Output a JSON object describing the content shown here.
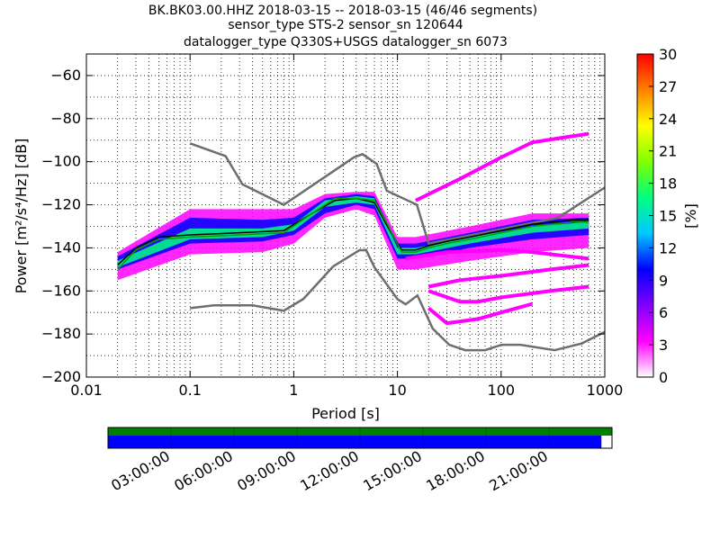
{
  "title": {
    "line1": "BK.BK03.00.HHZ   2018-03-15 -- 2018-03-15  (46/46 segments)",
    "line2": "sensor_type STS-2 sensor_sn 120644",
    "line3": "datalogger_type Q330S+USGS datalogger_sn 6073"
  },
  "chart_data": {
    "type": "heatmap",
    "xlabel": "Period [s]",
    "ylabel": "Power [m²/s⁴/Hz] [dB]",
    "x_scale": "log",
    "xlim": [
      0.01,
      1000
    ],
    "ylim": [
      -200,
      -50
    ],
    "x_ticks": [
      {
        "value": 0.01,
        "label": "0.01"
      },
      {
        "value": 0.1,
        "label": "0.1"
      },
      {
        "value": 1,
        "label": "1"
      },
      {
        "value": 10,
        "label": "10"
      },
      {
        "value": 100,
        "label": "100"
      },
      {
        "value": 1000,
        "label": "1000"
      }
    ],
    "y_ticks": [
      {
        "value": -60,
        "label": "−60"
      },
      {
        "value": -80,
        "label": "−80"
      },
      {
        "value": -100,
        "label": "−100"
      },
      {
        "value": -120,
        "label": "−120"
      },
      {
        "value": -140,
        "label": "−140"
      },
      {
        "value": -160,
        "label": "−160"
      },
      {
        "value": -180,
        "label": "−180"
      },
      {
        "value": -200,
        "label": "−200"
      }
    ],
    "grid": "dotted",
    "colorbar": {
      "label": "[%]",
      "range": [
        0,
        30
      ],
      "ticks": [
        "0",
        "3",
        "6",
        "9",
        "12",
        "15",
        "18",
        "21",
        "24",
        "27",
        "30"
      ],
      "colors": [
        "#ffffff",
        "#ff00ff",
        "#8000ff",
        "#0000ff",
        "#00c8ff",
        "#00ff80",
        "#80ff00",
        "#ffff00",
        "#ff8000",
        "#ff0000"
      ]
    },
    "series": [
      {
        "role": "high-noise-model",
        "color": "#6e6e6e",
        "x": [
          0.1,
          0.22,
          0.32,
          0.8,
          3.8,
          4.6,
          6.3,
          7.9,
          15.4,
          20,
          354.8,
          1000
        ],
        "y": [
          -91.5,
          -97.4,
          -110.5,
          -120,
          -98,
          -96.5,
          -101,
          -113.5,
          -120,
          -138,
          -126,
          -112
        ]
      },
      {
        "role": "low-noise-model",
        "color": "#6e6e6e",
        "x": [
          0.1,
          0.17,
          0.4,
          0.8,
          1.24,
          2.4,
          4.3,
          5,
          6,
          10,
          12,
          15.6,
          21.9,
          31.6,
          45,
          70,
          101,
          154,
          328,
          600,
          1000
        ],
        "y": [
          -168,
          -166.7,
          -166.7,
          -169.2,
          -163.7,
          -148.6,
          -141.1,
          -141.1,
          -149,
          -163.8,
          -166.2,
          -162.1,
          -177.5,
          -185,
          -187.5,
          -187.5,
          -185,
          -185,
          -187.5,
          -184.4,
          -179
        ]
      },
      {
        "role": "mean",
        "color": "#000000",
        "x": [
          0.02,
          0.03,
          0.05,
          0.1,
          0.3,
          0.8,
          1.5,
          2.5,
          4,
          6,
          8,
          11,
          15,
          20,
          30,
          50,
          100,
          200,
          500,
          700
        ],
        "y": [
          -148,
          -140,
          -135,
          -134,
          -133,
          -132,
          -124,
          -118,
          -117,
          -119,
          -130,
          -141,
          -141,
          -139,
          -137,
          -135,
          -132,
          -129,
          -127,
          -127
        ]
      },
      {
        "role": "mode",
        "color": "#00a000",
        "x": [
          0.02,
          0.03,
          0.05,
          0.1,
          0.3,
          0.8,
          1.5,
          2.5,
          4,
          6,
          8,
          11,
          15,
          20,
          30,
          50,
          100,
          200,
          500,
          700
        ],
        "y": [
          -150,
          -141,
          -136,
          -135,
          -134,
          -133,
          -124,
          -117,
          -117,
          -118,
          -129,
          -142,
          -142,
          -140,
          -138,
          -136,
          -133,
          -130,
          -128,
          -128
        ]
      }
    ],
    "density_bands": [
      {
        "x": [
          0.02,
          0.1,
          0.5,
          1,
          2,
          4,
          6,
          10,
          15,
          50,
          200,
          700
        ],
        "low": [
          -155,
          -143,
          -142,
          -138,
          -126,
          -122,
          -125,
          -150,
          -150,
          -146,
          -142,
          -140
        ],
        "high": [
          -142,
          -122,
          -122,
          -122,
          -115,
          -114,
          -114,
          -135,
          -135,
          -130,
          -124,
          -124
        ],
        "level": 3
      },
      {
        "x": [
          0.02,
          0.1,
          0.5,
          1,
          2,
          4,
          6,
          10,
          15,
          50,
          200,
          700
        ],
        "low": [
          -150,
          -138,
          -137,
          -134,
          -124,
          -120,
          -122,
          -145,
          -145,
          -140,
          -136,
          -134
        ],
        "high": [
          -144,
          -126,
          -127,
          -126,
          -117,
          -115,
          -116,
          -138,
          -138,
          -133,
          -127,
          -126
        ],
        "level": 10
      },
      {
        "x": [
          0.02,
          0.1,
          0.5,
          1,
          2,
          4,
          6,
          10,
          15,
          50,
          200,
          700
        ],
        "low": [
          -149,
          -136,
          -135,
          -132,
          -121,
          -119,
          -120,
          -143,
          -143,
          -138,
          -133,
          -131
        ],
        "high": [
          -146,
          -131,
          -131,
          -129,
          -118,
          -116,
          -117,
          -140,
          -140,
          -135,
          -130,
          -128
        ],
        "level": 18
      }
    ],
    "outlier_segments": [
      {
        "x": [
          15,
          40,
          100,
          200,
          700
        ],
        "y": [
          -118,
          -108,
          -98,
          -91,
          -87
        ]
      },
      {
        "x": [
          12,
          30,
          100,
          200,
          700
        ],
        "y": [
          -145,
          -142,
          -141,
          -142,
          -145
        ]
      },
      {
        "x": [
          20,
          40,
          100,
          300,
          700
        ],
        "y": [
          -158,
          -155,
          -153,
          -150,
          -148
        ]
      },
      {
        "x": [
          20,
          40,
          60,
          100,
          300,
          700
        ],
        "y": [
          -160,
          -165,
          -165,
          -163,
          -160,
          -158
        ]
      },
      {
        "x": [
          20,
          30,
          60,
          100,
          200
        ],
        "y": [
          -168,
          -175,
          -173,
          -170,
          -166
        ]
      }
    ]
  },
  "time_axis": {
    "ticks": [
      "03:00:00",
      "06:00:00",
      "09:00:00",
      "12:00:00",
      "15:00:00",
      "18:00:00",
      "21:00:00"
    ],
    "tick_hours": [
      3,
      6,
      9,
      12,
      15,
      18,
      21
    ],
    "span_hours": 24,
    "coverage_fraction": 0.979,
    "top_color": "#008000",
    "bottom_color": "#0000ff"
  }
}
